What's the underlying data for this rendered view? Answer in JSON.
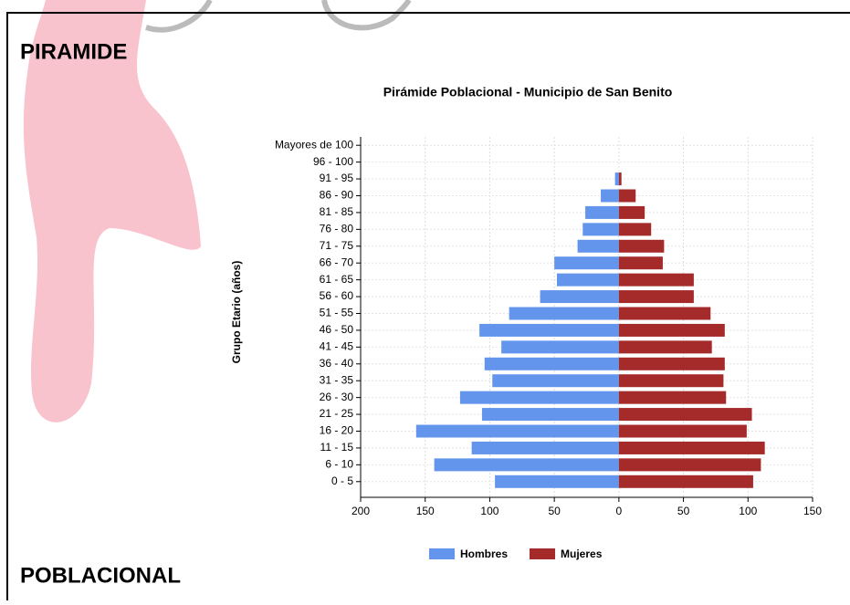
{
  "header": {
    "title": "PIRAMIDE",
    "subtitle": "POBLACIONAL"
  },
  "chart_data": {
    "type": "pyramid",
    "title": "Pirámide Poblacional - Municipio de San Benito",
    "y_label": "Grupo Etario (años)",
    "categories": [
      "0 - 5",
      "6 - 10",
      "11 - 15",
      "16 - 20",
      "21 - 25",
      "26 - 30",
      "31 - 35",
      "36 - 40",
      "41 - 45",
      "46 - 50",
      "51 - 55",
      "56 - 60",
      "61 - 65",
      "66 - 70",
      "71 - 75",
      "76 - 80",
      "81 - 85",
      "86 - 90",
      "91 - 95",
      "96 - 100",
      "Mayores de 100"
    ],
    "series": [
      {
        "name": "Hombres",
        "color": "#6495ed",
        "values": [
          -96,
          -143,
          -114,
          -157,
          -106,
          -123,
          -98,
          -104,
          -91,
          -108,
          -85,
          -61,
          -48,
          -50,
          -32,
          -28,
          -26,
          -14,
          -3,
          0,
          0
        ]
      },
      {
        "name": "Mujeres",
        "color": "#a52a2a",
        "values": [
          104,
          110,
          113,
          99,
          103,
          83,
          81,
          82,
          72,
          82,
          71,
          58,
          58,
          34,
          35,
          25,
          20,
          13,
          2,
          0,
          0
        ]
      }
    ],
    "xlim": [
      -200,
      150
    ],
    "xticks": [
      {
        "value": -200,
        "label": "200"
      },
      {
        "value": -150,
        "label": "150"
      },
      {
        "value": -100,
        "label": "100"
      },
      {
        "value": -50,
        "label": "50"
      },
      0,
      50,
      100,
      150
    ],
    "grid": true,
    "legend": "bottom"
  }
}
